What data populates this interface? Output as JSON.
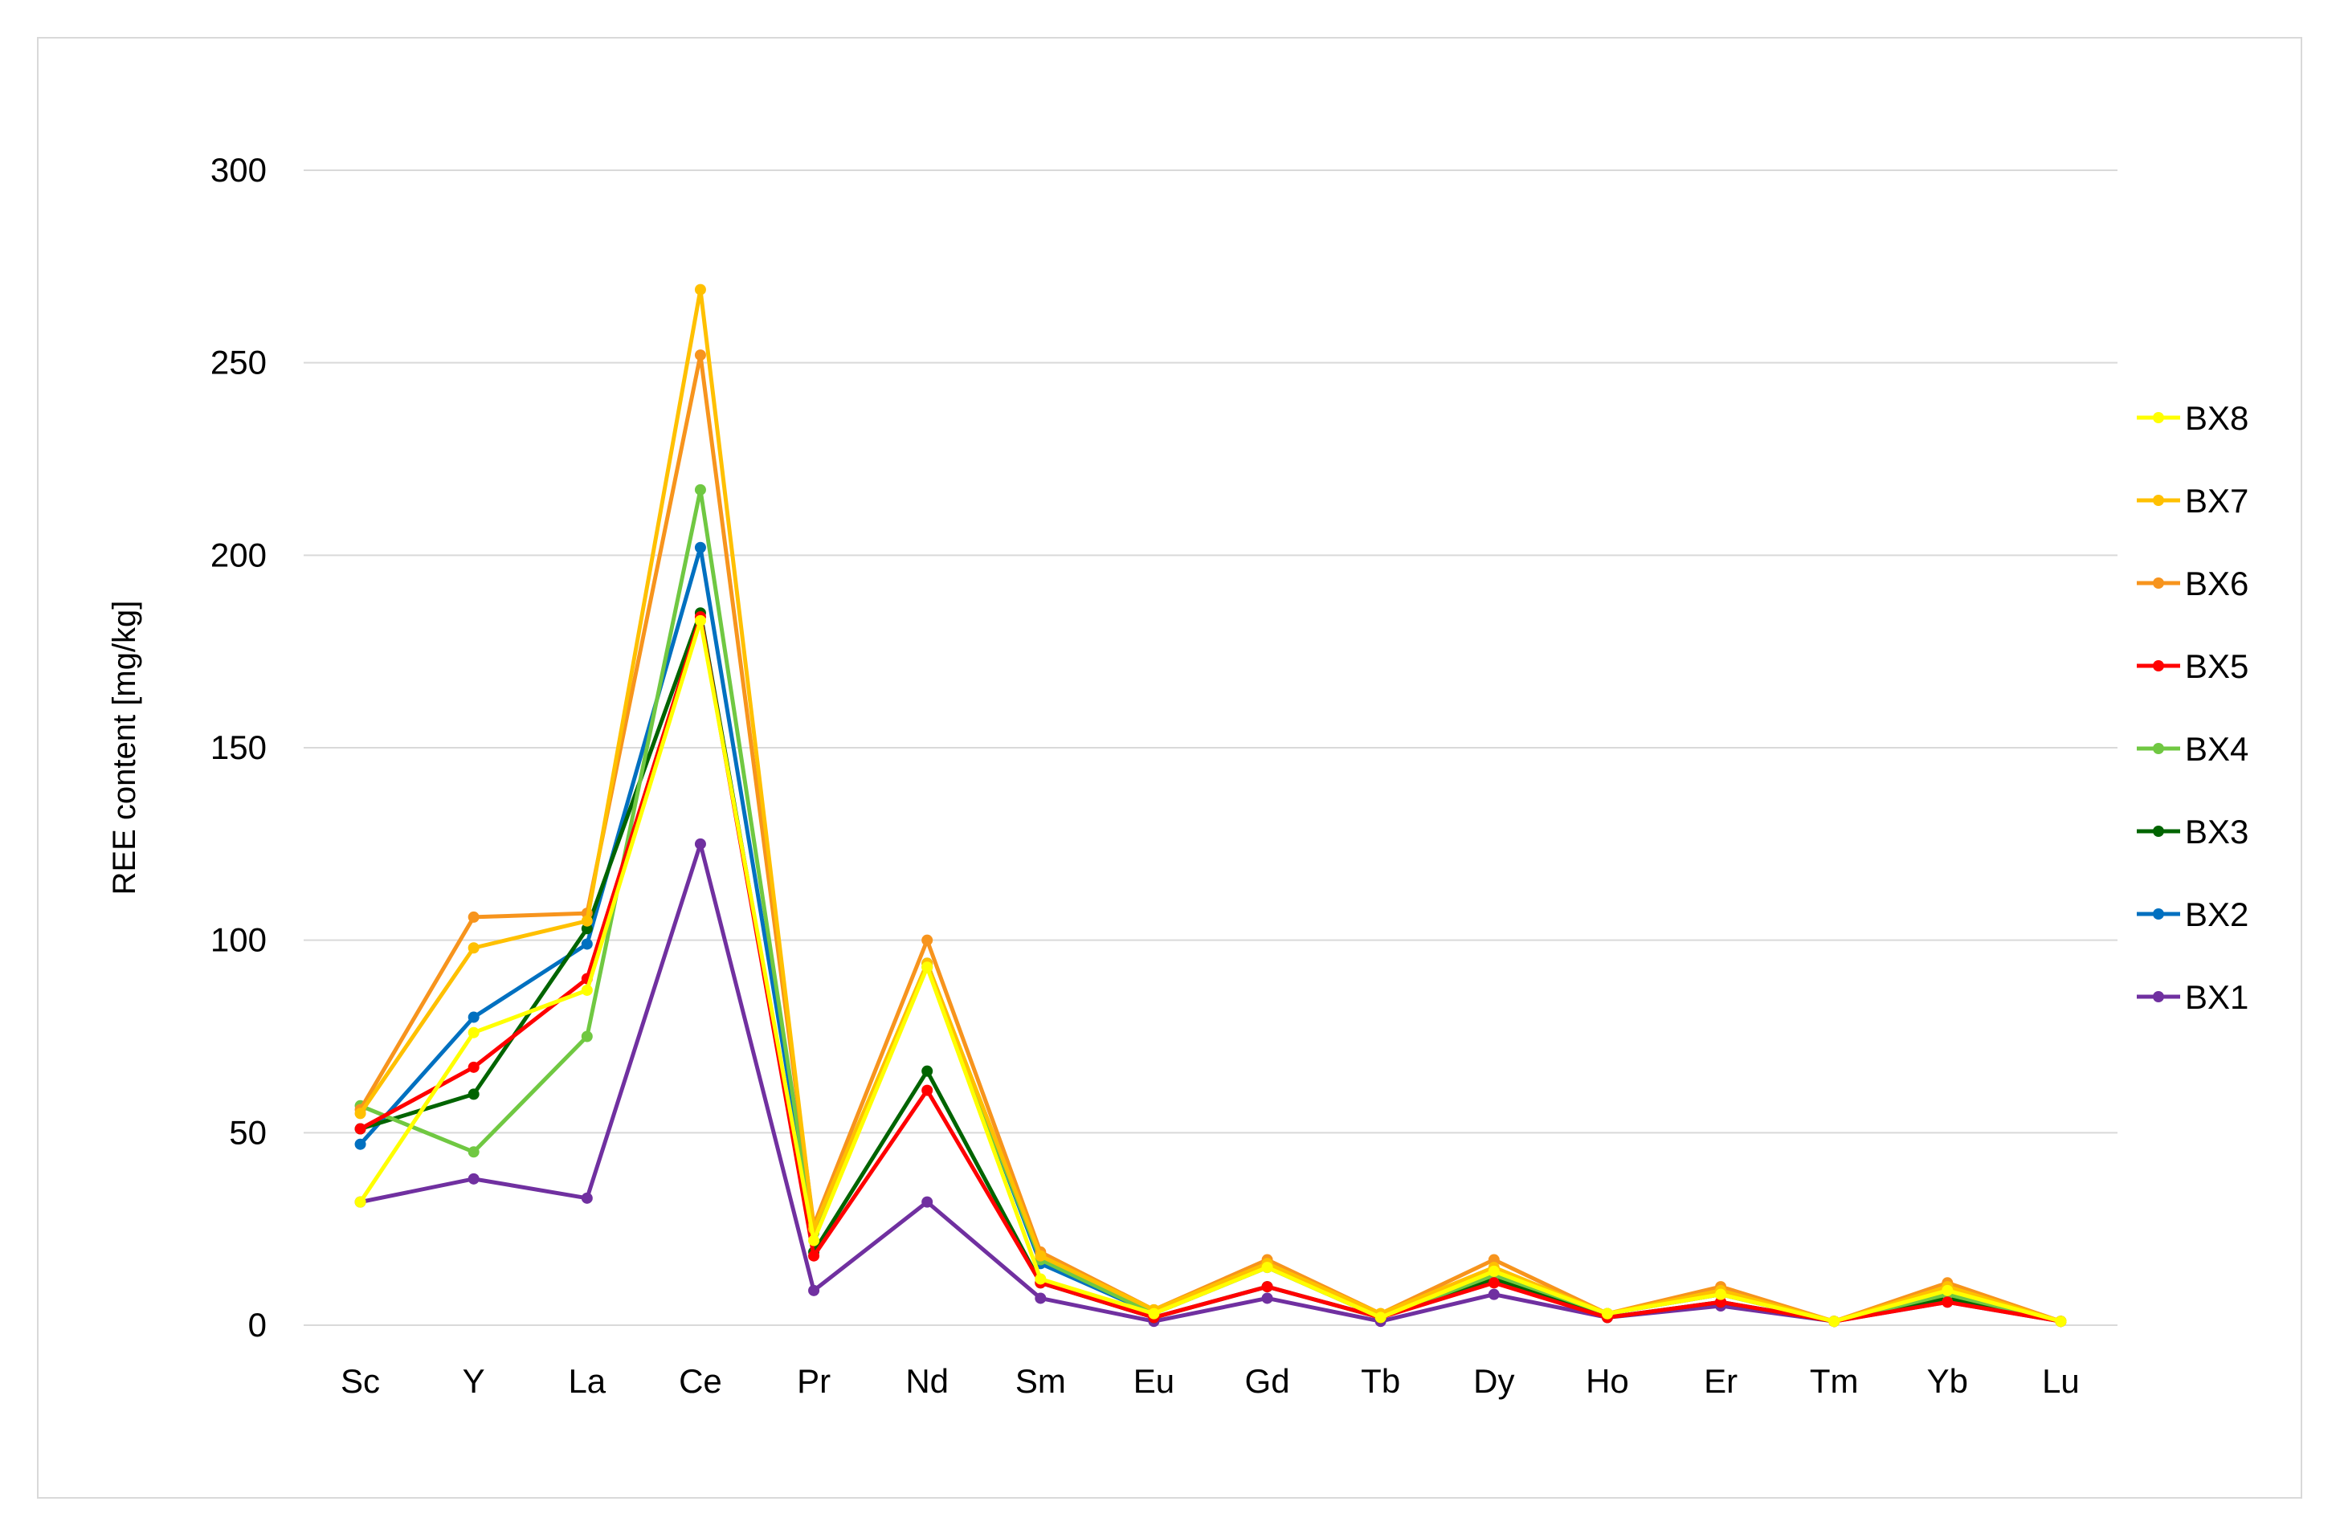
{
  "chart_data": {
    "type": "line",
    "title": "",
    "xlabel": "",
    "ylabel": "REE content [mg/kg]",
    "ylim": [
      0,
      300
    ],
    "yticks": [
      0,
      50,
      100,
      150,
      200,
      250,
      300
    ],
    "grid": "horizontal",
    "legend_position": "right",
    "categories": [
      "Sc",
      "Y",
      "La",
      "Ce",
      "Pr",
      "Nd",
      "Sm",
      "Eu",
      "Gd",
      "Tb",
      "Dy",
      "Ho",
      "Er",
      "Tm",
      "Yb",
      "Lu"
    ],
    "series": [
      {
        "name": "BX8",
        "color": "#ffff00",
        "values": [
          32,
          76,
          87,
          183,
          22,
          93,
          12,
          3,
          15,
          2,
          14,
          3,
          8,
          1,
          9,
          1
        ]
      },
      {
        "name": "BX7",
        "color": "#ffc000",
        "values": [
          55,
          98,
          105,
          269,
          25,
          94,
          18,
          4,
          16,
          3,
          15,
          3,
          9,
          1,
          10,
          1
        ]
      },
      {
        "name": "BX6",
        "color": "#f7941d",
        "values": [
          56,
          106,
          107,
          252,
          26,
          100,
          19,
          4,
          17,
          3,
          17,
          3,
          10,
          1,
          11,
          1
        ]
      },
      {
        "name": "BX5",
        "color": "#ff0000",
        "values": [
          51,
          67,
          90,
          184,
          18,
          61,
          11,
          2,
          10,
          2,
          11,
          2,
          6,
          1,
          6,
          1
        ]
      },
      {
        "name": "BX4",
        "color": "#70c842",
        "values": [
          57,
          45,
          75,
          217,
          24,
          93,
          17,
          3,
          16,
          2,
          13,
          3,
          8,
          1,
          8,
          1
        ]
      },
      {
        "name": "BX3",
        "color": "#006400",
        "values": [
          51,
          60,
          103,
          185,
          19,
          66,
          11,
          2,
          10,
          2,
          12,
          2,
          6,
          1,
          7,
          1
        ]
      },
      {
        "name": "BX2",
        "color": "#0070c0",
        "values": [
          47,
          80,
          99,
          202,
          24,
          94,
          16,
          3,
          15,
          2,
          14,
          3,
          8,
          1,
          8,
          1
        ]
      },
      {
        "name": "BX1",
        "color": "#7030a0",
        "values": [
          32,
          38,
          33,
          125,
          9,
          32,
          7,
          1,
          7,
          1,
          8,
          2,
          5,
          1,
          6,
          1
        ]
      }
    ]
  }
}
